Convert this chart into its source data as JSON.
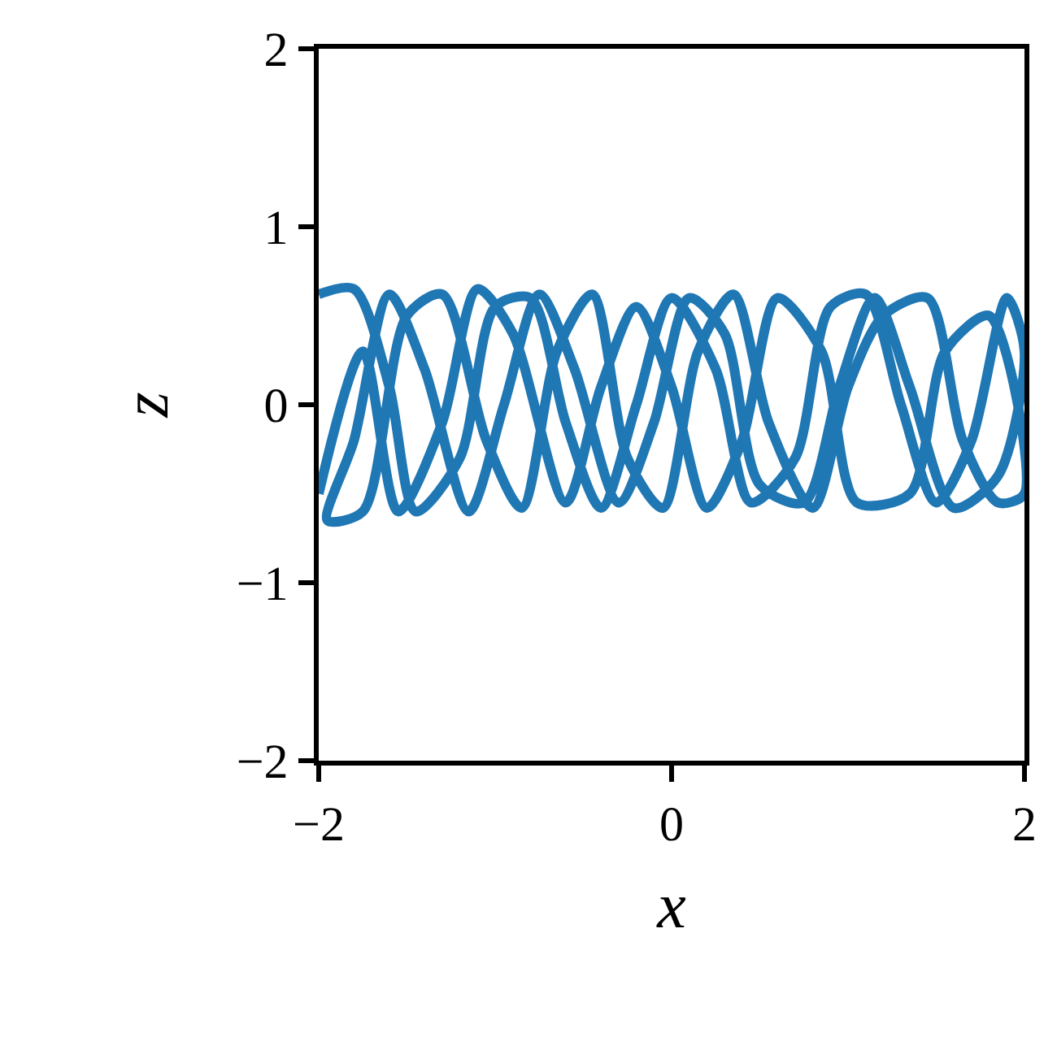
{
  "chart_data": {
    "type": "line",
    "xlabel": "x",
    "ylabel": "z",
    "xlim": [
      -2,
      2
    ],
    "ylim": [
      -2,
      2
    ],
    "xticks": [
      {
        "value": -2,
        "label": "−2"
      },
      0,
      2
    ],
    "yticks": [
      {
        "value": -2,
        "label": "−2"
      },
      {
        "value": -1,
        "label": "−1"
      },
      0,
      1,
      2
    ],
    "marker": "none",
    "line_style": "solid",
    "series": [
      {
        "color": "#1f77b4",
        "x": [
          -2,
          -1.8,
          -1.6,
          -1.45,
          -1.2,
          -1.0,
          -0.8,
          -0.6,
          -0.4,
          -0.2,
          0,
          0.25,
          0.45,
          0.7,
          0.9,
          1.1,
          1.3,
          1.5,
          1.7,
          1.9,
          2.0,
          1.85,
          1.6,
          1.35,
          1.15,
          0.95,
          0.75,
          0.5,
          0.3,
          0.1,
          -0.1,
          -0.3,
          -0.55,
          -0.75,
          -0.95,
          -1.15,
          -1.4,
          -1.6,
          -1.8,
          -1.95,
          -1.75,
          -1.5,
          -1.3,
          -1.05,
          -0.85,
          -0.65,
          -0.45,
          -0.25,
          -0.05,
          0.15,
          0.35,
          0.55,
          0.8,
          1.0,
          1.2,
          1.45,
          1.65,
          1.85,
          2.0,
          1.8,
          1.55,
          1.35,
          1.05,
          0.85,
          0.6,
          0.4,
          0.2,
          0.0,
          -0.2,
          -0.4,
          -0.6,
          -0.9,
          -1.1,
          -1.3,
          -1.55,
          -1.75,
          -2.0
        ],
        "values": [
          0.62,
          0.65,
          0.1,
          -0.6,
          -0.3,
          0.55,
          0.6,
          -0.1,
          -0.58,
          0.0,
          0.6,
          0.2,
          -0.55,
          -0.3,
          0.55,
          0.62,
          0.0,
          -0.55,
          -0.2,
          0.6,
          0.3,
          -0.4,
          -0.58,
          0.1,
          0.6,
          0.1,
          -0.55,
          -0.45,
          0.4,
          0.6,
          -0.1,
          -0.55,
          0.2,
          0.62,
          0.0,
          -0.6,
          0.2,
          0.62,
          -0.2,
          -0.65,
          -0.6,
          0.5,
          0.62,
          -0.2,
          -0.58,
          0.3,
          0.62,
          -0.3,
          -0.58,
          0.3,
          0.62,
          -0.1,
          -0.58,
          0.1,
          0.5,
          0.6,
          -0.2,
          -0.55,
          -0.5,
          0.5,
          0.3,
          -0.5,
          -0.55,
          0.3,
          0.6,
          -0.2,
          -0.58,
          0.1,
          0.55,
          0.1,
          -0.55,
          0.4,
          0.65,
          -0.1,
          -0.6,
          0.3,
          -0.5
        ]
      }
    ]
  }
}
